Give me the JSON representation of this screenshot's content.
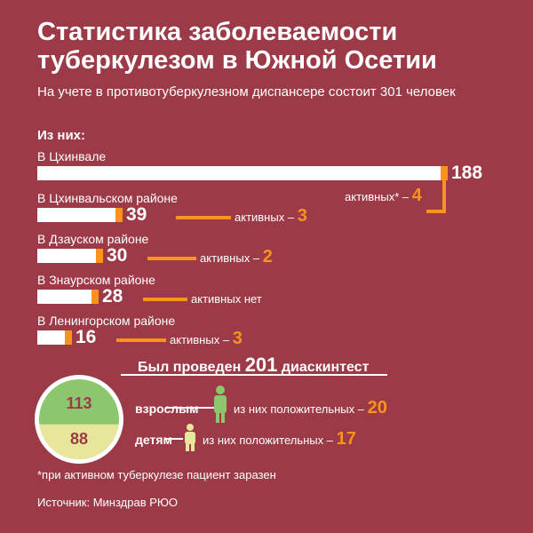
{
  "title": "Статистика заболеваемости туберкулезом в Южной Осетии",
  "subtitle": "На учете в противотуберкулезном диспансере состоит 301 человек",
  "of_them": "Из них:",
  "chart_data": {
    "type": "bar",
    "categories": [
      "В Цхинвале",
      "В Цхинвальском районе",
      "В Дзауском районе",
      "В Знаурском районе",
      "В Ленингорском районе"
    ],
    "values": [
      188,
      39,
      30,
      28,
      16
    ],
    "active": [
      {
        "label": "активных* –",
        "value": "4"
      },
      {
        "label": "активных –",
        "value": "3"
      },
      {
        "label": "активных –",
        "value": "2"
      },
      {
        "label": "активных нет",
        "value": ""
      },
      {
        "label": "активных –",
        "value": "3"
      }
    ],
    "colors": {
      "bar": "#ffffff",
      "accent": "#f7931e",
      "background": "#9c3a48"
    }
  },
  "test": {
    "title_prefix": "Был проведен",
    "total": "201",
    "title_suffix": "диаскинтест",
    "adults": {
      "label": "взрослым",
      "count": "113",
      "positive_label": "из них положительных –",
      "positive": "20",
      "color": "#8cc76e"
    },
    "children": {
      "label": "детям",
      "count": "88",
      "positive_label": "из них положительных –",
      "positive": "17",
      "color": "#e8e69a"
    }
  },
  "footnote": "*при активном туберкулезе пациент заразен",
  "source": "Источник: Минздрав РЮО"
}
